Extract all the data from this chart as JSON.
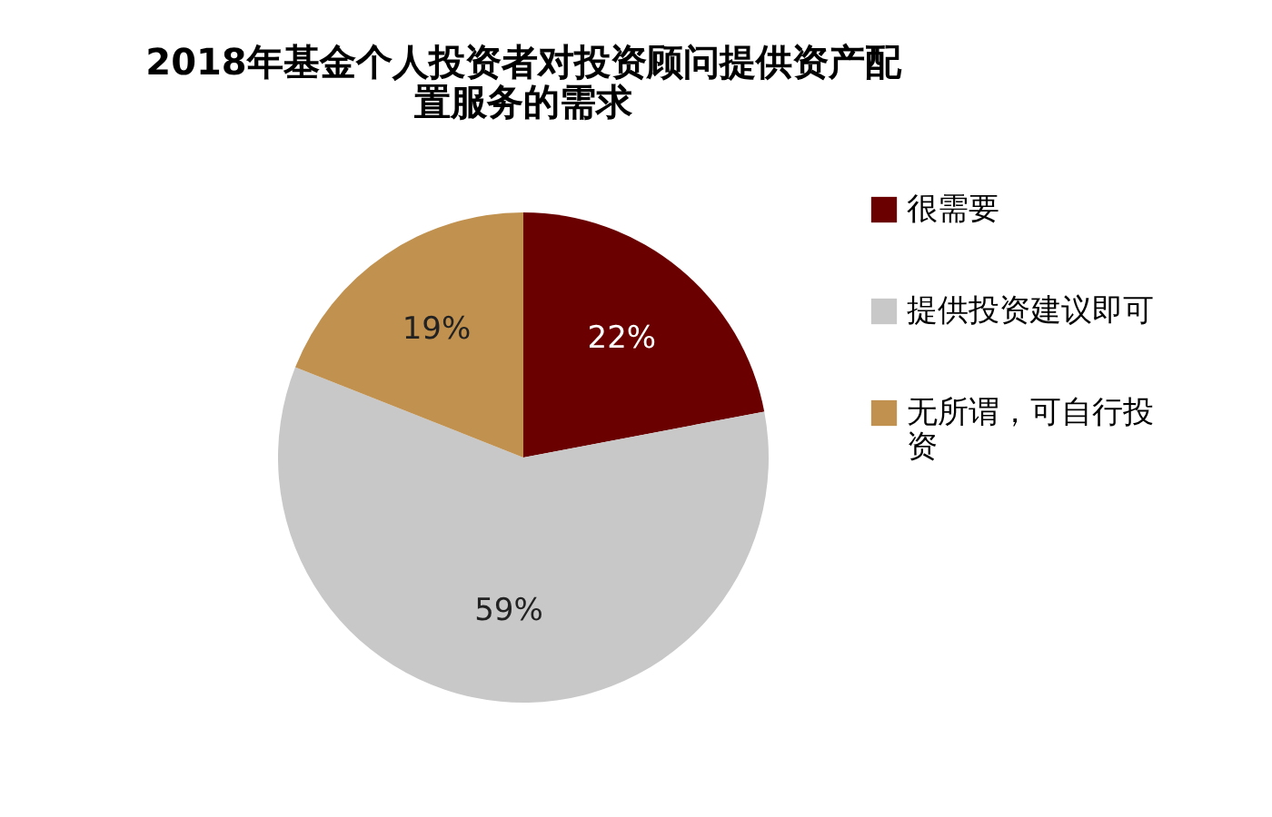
{
  "chart_data": {
    "type": "pie",
    "title": "2018年基金个人投资者对投资顾问提供资产配置服务的需求",
    "categories": [
      "很需要",
      "提供投资建议即可",
      "无所谓，可自行投资"
    ],
    "values": [
      22,
      59,
      19
    ],
    "colors": [
      "#6b0000",
      "#c8c8c8",
      "#c0914f"
    ],
    "data_labels": true,
    "value_labels": [
      "22%",
      "59%",
      "19%"
    ],
    "legend": "right"
  }
}
